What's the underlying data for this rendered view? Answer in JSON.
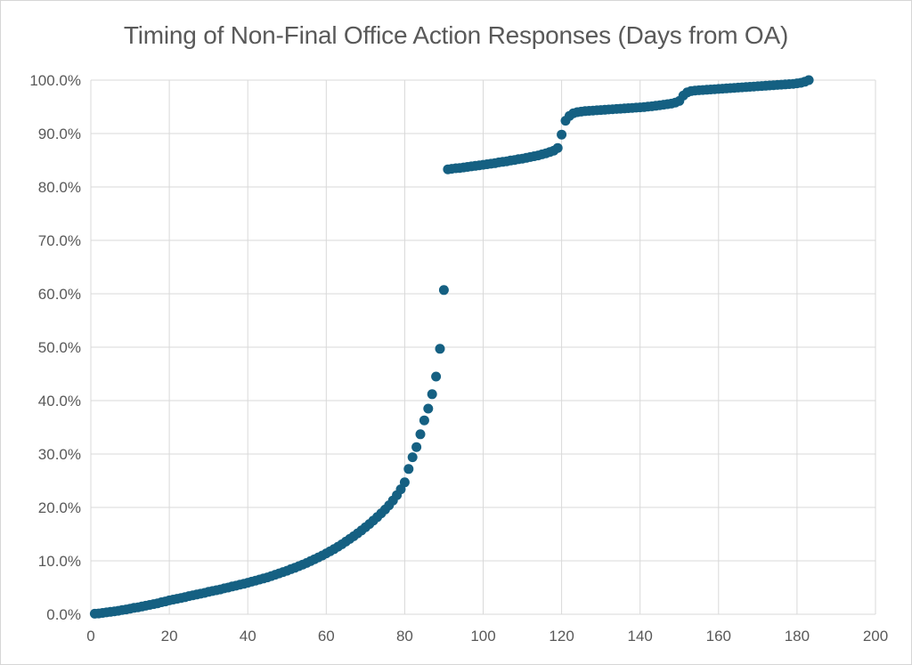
{
  "chart_data": {
    "type": "scatter",
    "title": "Timing of Non-Final Office Action Responses (Days from OA)",
    "xlabel": "",
    "ylabel": "",
    "xlim": [
      0,
      200
    ],
    "ylim_percent": [
      0,
      100
    ],
    "x_ticks": [
      0,
      20,
      40,
      60,
      80,
      100,
      120,
      140,
      160,
      180,
      200
    ],
    "y_tick_labels": [
      "0.0%",
      "10.0%",
      "20.0%",
      "30.0%",
      "40.0%",
      "50.0%",
      "60.0%",
      "70.0%",
      "80.0%",
      "90.0%",
      "100.0%"
    ],
    "grid": true,
    "legend": "none",
    "marker_color": "#156082",
    "gridline_color": "#d9d9d9",
    "text_color": "#595959",
    "points_unit": [
      "day",
      "cumulative_percent"
    ],
    "points": [
      [
        1,
        0.1
      ],
      [
        2,
        0.15
      ],
      [
        3,
        0.25
      ],
      [
        4,
        0.35
      ],
      [
        5,
        0.45
      ],
      [
        6,
        0.55
      ],
      [
        7,
        0.65
      ],
      [
        8,
        0.8
      ],
      [
        9,
        0.9
      ],
      [
        10,
        1.05
      ],
      [
        11,
        1.2
      ],
      [
        12,
        1.3
      ],
      [
        13,
        1.45
      ],
      [
        14,
        1.6
      ],
      [
        15,
        1.75
      ],
      [
        16,
        1.9
      ],
      [
        17,
        2.05
      ],
      [
        18,
        2.25
      ],
      [
        19,
        2.4
      ],
      [
        20,
        2.6
      ],
      [
        21,
        2.75
      ],
      [
        22,
        2.9
      ],
      [
        23,
        3.05
      ],
      [
        24,
        3.2
      ],
      [
        25,
        3.4
      ],
      [
        26,
        3.55
      ],
      [
        27,
        3.7
      ],
      [
        28,
        3.85
      ],
      [
        29,
        4.0
      ],
      [
        30,
        4.2
      ],
      [
        31,
        4.35
      ],
      [
        32,
        4.5
      ],
      [
        33,
        4.65
      ],
      [
        34,
        4.85
      ],
      [
        35,
        5.0
      ],
      [
        36,
        5.2
      ],
      [
        37,
        5.35
      ],
      [
        38,
        5.55
      ],
      [
        39,
        5.7
      ],
      [
        40,
        5.9
      ],
      [
        41,
        6.1
      ],
      [
        42,
        6.3
      ],
      [
        43,
        6.5
      ],
      [
        44,
        6.7
      ],
      [
        45,
        6.9
      ],
      [
        46,
        7.15
      ],
      [
        47,
        7.4
      ],
      [
        48,
        7.65
      ],
      [
        49,
        7.9
      ],
      [
        50,
        8.15
      ],
      [
        51,
        8.45
      ],
      [
        52,
        8.7
      ],
      [
        53,
        9.0
      ],
      [
        54,
        9.3
      ],
      [
        55,
        9.6
      ],
      [
        56,
        9.95
      ],
      [
        57,
        10.3
      ],
      [
        58,
        10.65
      ],
      [
        59,
        11.0
      ],
      [
        60,
        11.4
      ],
      [
        61,
        11.8
      ],
      [
        62,
        12.2
      ],
      [
        63,
        12.65
      ],
      [
        64,
        13.1
      ],
      [
        65,
        13.6
      ],
      [
        66,
        14.1
      ],
      [
        67,
        14.6
      ],
      [
        68,
        15.15
      ],
      [
        69,
        15.7
      ],
      [
        70,
        16.3
      ],
      [
        71,
        16.9
      ],
      [
        72,
        17.55
      ],
      [
        73,
        18.2
      ],
      [
        74,
        18.9
      ],
      [
        75,
        19.6
      ],
      [
        76,
        20.4
      ],
      [
        77,
        21.3
      ],
      [
        78,
        22.3
      ],
      [
        79,
        23.4
      ],
      [
        80,
        24.7
      ],
      [
        81,
        27.2
      ],
      [
        82,
        29.4
      ],
      [
        83,
        31.3
      ],
      [
        84,
        33.7
      ],
      [
        85,
        36.3
      ],
      [
        86,
        38.5
      ],
      [
        87,
        41.2
      ],
      [
        88,
        44.5
      ],
      [
        89,
        49.7
      ],
      [
        90,
        60.7
      ],
      [
        91,
        83.3
      ],
      [
        92,
        83.4
      ],
      [
        93,
        83.5
      ],
      [
        94,
        83.55
      ],
      [
        95,
        83.65
      ],
      [
        96,
        83.75
      ],
      [
        97,
        83.85
      ],
      [
        98,
        83.95
      ],
      [
        99,
        84.05
      ],
      [
        100,
        84.15
      ],
      [
        101,
        84.25
      ],
      [
        102,
        84.35
      ],
      [
        103,
        84.45
      ],
      [
        104,
        84.6
      ],
      [
        105,
        84.7
      ],
      [
        106,
        84.8
      ],
      [
        107,
        84.95
      ],
      [
        108,
        85.05
      ],
      [
        109,
        85.2
      ],
      [
        110,
        85.3
      ],
      [
        111,
        85.45
      ],
      [
        112,
        85.6
      ],
      [
        113,
        85.75
      ],
      [
        114,
        85.9
      ],
      [
        115,
        86.1
      ],
      [
        116,
        86.3
      ],
      [
        117,
        86.55
      ],
      [
        118,
        86.8
      ],
      [
        119,
        87.3
      ],
      [
        120,
        89.8
      ],
      [
        121,
        92.4
      ],
      [
        122,
        93.3
      ],
      [
        123,
        93.8
      ],
      [
        124,
        94.0
      ],
      [
        125,
        94.1
      ],
      [
        126,
        94.2
      ],
      [
        127,
        94.25
      ],
      [
        128,
        94.3
      ],
      [
        129,
        94.35
      ],
      [
        130,
        94.4
      ],
      [
        131,
        94.45
      ],
      [
        132,
        94.5
      ],
      [
        133,
        94.55
      ],
      [
        134,
        94.6
      ],
      [
        135,
        94.65
      ],
      [
        136,
        94.7
      ],
      [
        137,
        94.75
      ],
      [
        138,
        94.8
      ],
      [
        139,
        94.85
      ],
      [
        140,
        94.9
      ],
      [
        141,
        94.95
      ],
      [
        142,
        95.05
      ],
      [
        143,
        95.1
      ],
      [
        144,
        95.2
      ],
      [
        145,
        95.3
      ],
      [
        146,
        95.4
      ],
      [
        147,
        95.5
      ],
      [
        148,
        95.6
      ],
      [
        149,
        95.8
      ],
      [
        150,
        96.1
      ],
      [
        151,
        97.1
      ],
      [
        152,
        97.7
      ],
      [
        153,
        97.95
      ],
      [
        154,
        98.05
      ],
      [
        155,
        98.1
      ],
      [
        156,
        98.15
      ],
      [
        157,
        98.2
      ],
      [
        158,
        98.25
      ],
      [
        159,
        98.3
      ],
      [
        160,
        98.35
      ],
      [
        161,
        98.4
      ],
      [
        162,
        98.45
      ],
      [
        163,
        98.5
      ],
      [
        164,
        98.55
      ],
      [
        165,
        98.6
      ],
      [
        166,
        98.65
      ],
      [
        167,
        98.7
      ],
      [
        168,
        98.75
      ],
      [
        169,
        98.8
      ],
      [
        170,
        98.85
      ],
      [
        171,
        98.9
      ],
      [
        172,
        98.95
      ],
      [
        173,
        99.0
      ],
      [
        174,
        99.05
      ],
      [
        175,
        99.1
      ],
      [
        176,
        99.15
      ],
      [
        177,
        99.2
      ],
      [
        178,
        99.25
      ],
      [
        179,
        99.3
      ],
      [
        180,
        99.4
      ],
      [
        181,
        99.5
      ],
      [
        182,
        99.7
      ],
      [
        183,
        100.0
      ]
    ]
  }
}
